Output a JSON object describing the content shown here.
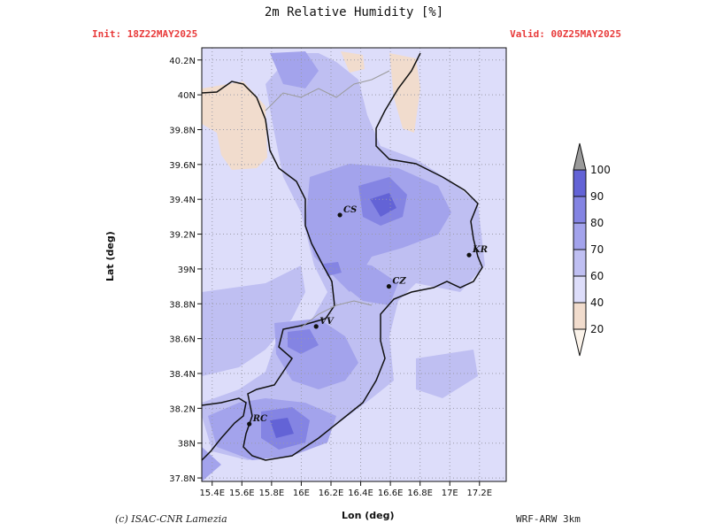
{
  "header": {
    "title": "2m Relative Humidity [%]",
    "init": "Init: 18Z22MAY2025",
    "valid": "Valid: 00Z25MAY2025"
  },
  "footer": {
    "credit": "(c) ISAC-CNR Lamezia",
    "model": "WRF-ARW 3km"
  },
  "axes": {
    "xlabel": "Lon (deg)",
    "ylabel": "Lat (deg)",
    "xticks": [
      "15.4E",
      "15.6E",
      "15.8E",
      "16E",
      "16.2E",
      "16.4E",
      "16.6E",
      "16.8E",
      "17E",
      "17.2E"
    ],
    "yticks": [
      "40.2N",
      "40N",
      "39.8N",
      "39.6N",
      "39.4N",
      "39.2N",
      "39N",
      "38.8N",
      "38.6N",
      "38.4N",
      "38.2N",
      "38N",
      "37.8N"
    ],
    "lon_range": [
      15.33,
      17.38
    ],
    "lat_range": [
      37.78,
      40.27
    ],
    "grid": "dotted"
  },
  "cities": [
    {
      "label": "CS",
      "lon": 16.26,
      "lat": 39.31
    },
    {
      "label": "KR",
      "lon": 17.13,
      "lat": 39.08
    },
    {
      "label": "CZ",
      "lon": 16.59,
      "lat": 38.9
    },
    {
      "label": "VV",
      "lon": 16.1,
      "lat": 38.67
    },
    {
      "label": "RC",
      "lon": 15.65,
      "lat": 38.11
    }
  ],
  "colorbar": {
    "levels": [
      "20",
      "40",
      "60",
      "70",
      "80",
      "90",
      "100"
    ],
    "colors": [
      "#fbf3ea",
      "#f1dccd",
      "#ddddfa",
      "#bfbff2",
      "#a3a3ec",
      "#8484e3",
      "#6363d6"
    ],
    "over_color": "#9a9a9a"
  },
  "colors": {
    "background": "#ddddfa",
    "land_dry": "#f1dccd",
    "humid": "#a3a3ec",
    "very_humid": "#8484e3",
    "saturated": "#6363d6",
    "title_red": "#e83a3a"
  }
}
